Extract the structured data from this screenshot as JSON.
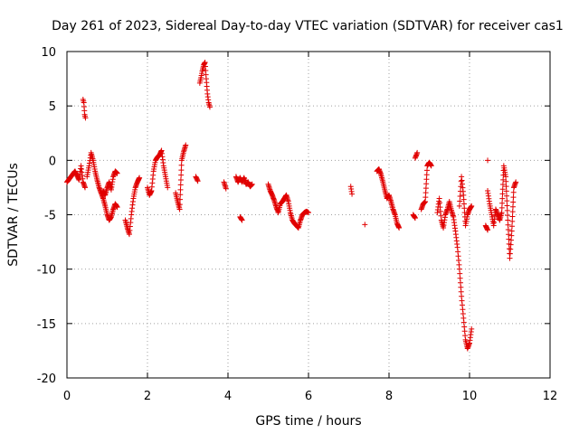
{
  "chart_data": {
    "type": "scatter",
    "title": "Day 261 of 2023, Sidereal Day-to-day VTEC variation (SDTVAR) for receiver cas1",
    "xlabel": "GPS time / hours",
    "ylabel": "SDTVAR / TECUs",
    "xlim": [
      0,
      12
    ],
    "ylim": [
      -20,
      10
    ],
    "xticks": [
      0,
      2,
      4,
      6,
      8,
      10,
      12
    ],
    "yticks": [
      -20,
      -15,
      -10,
      -5,
      0,
      5,
      10
    ],
    "xtick_labels": [
      "0",
      "2",
      "4",
      "6",
      "8",
      "10",
      "12"
    ],
    "ytick_labels": [
      "-20",
      "-15",
      "-10",
      "-5",
      "0",
      "5",
      "10"
    ],
    "grid": true,
    "marker": "plus",
    "color": "#e00000",
    "segments": [
      [
        0.0,
        -2.0,
        0.1,
        -1.5,
        0.2,
        -1.0,
        0.3,
        -1.8,
        0.35,
        -0.5,
        0.4,
        -2.0,
        0.45,
        -2.5
      ],
      [
        0.4,
        5.6,
        0.42,
        5.3,
        0.44,
        4.2,
        0.46,
        3.9
      ],
      [
        0.5,
        -1.5,
        0.55,
        -0.5,
        0.6,
        0.7,
        0.65,
        0.0,
        0.7,
        -1.0,
        0.75,
        -1.8,
        0.8,
        -2.5,
        0.85,
        -3.0,
        0.9,
        -3.5,
        0.95,
        -4.2,
        1.0,
        -5.0,
        1.05,
        -5.5,
        1.1,
        -5.2,
        1.15,
        -4.5,
        1.2,
        -4.0,
        1.25,
        -4.3
      ],
      [
        0.9,
        -2.8,
        0.95,
        -3.2,
        1.0,
        -2.5,
        1.05,
        -2.0,
        1.1,
        -2.7,
        1.15,
        -1.5,
        1.2,
        -1.0,
        1.25,
        -1.2
      ],
      [
        1.45,
        -5.5,
        1.5,
        -6.2,
        1.55,
        -6.8,
        1.6,
        -5.0,
        1.65,
        -3.5,
        1.7,
        -2.5,
        1.75,
        -2.0,
        1.8,
        -1.6
      ],
      [
        2.0,
        -2.5,
        2.05,
        -3.2,
        2.1,
        -2.8,
        2.15,
        -1.0,
        2.2,
        0.0,
        2.25,
        0.3,
        2.3,
        0.5,
        2.35,
        0.9,
        2.4,
        -0.5,
        2.45,
        -1.5,
        2.5,
        -2.5
      ],
      [
        2.7,
        -3.0,
        2.75,
        -3.8,
        2.8,
        -4.5,
        2.85,
        0.0,
        2.9,
        0.8,
        2.95,
        1.4
      ],
      [
        3.2,
        -1.5,
        3.25,
        -1.9
      ],
      [
        3.3,
        7.1,
        3.33,
        7.6,
        3.36,
        8.2,
        3.4,
        8.8,
        3.43,
        9.0,
        3.46,
        7.5,
        3.49,
        6.1,
        3.52,
        5.3,
        3.55,
        4.9
      ],
      [
        3.9,
        -2.0,
        3.95,
        -2.6
      ],
      [
        4.2,
        -1.5,
        4.25,
        -2.0,
        4.3,
        -1.6,
        4.35,
        -2.0,
        4.4,
        -1.6,
        4.45,
        -2.2,
        4.5,
        -2.0,
        4.55,
        -2.4,
        4.6,
        -2.2
      ],
      [
        4.3,
        -5.2,
        4.35,
        -5.5
      ],
      [
        5.0,
        -2.2,
        5.05,
        -2.8,
        5.1,
        -3.2,
        5.15,
        -3.7,
        5.2,
        -4.3,
        5.25,
        -4.8,
        5.3,
        -4.0,
        5.35,
        -3.8,
        5.4,
        -3.5,
        5.45,
        -3.2,
        5.5,
        -3.8,
        5.55,
        -4.8,
        5.6,
        -5.5,
        5.65,
        -5.8,
        5.7,
        -6.0,
        5.75,
        -6.2,
        5.8,
        -5.5,
        5.85,
        -5.0,
        5.9,
        -4.8,
        5.95,
        -4.7,
        6.0,
        -4.8
      ],
      [
        7.05,
        -2.4,
        7.08,
        -3.1
      ],
      [
        7.4,
        -5.9
      ],
      [
        7.7,
        -1.0,
        7.75,
        -0.8,
        7.8,
        -1.3,
        7.85,
        -2.0,
        7.9,
        -2.8,
        7.95,
        -3.5,
        8.0,
        -3.2,
        8.05,
        -3.8,
        8.1,
        -4.5,
        8.15,
        -5.0,
        8.2,
        -5.8,
        8.25,
        -6.2
      ],
      [
        8.6,
        -5.0,
        8.65,
        -5.3
      ],
      [
        8.65,
        0.2,
        8.7,
        0.7
      ],
      [
        8.8,
        -4.5,
        8.85,
        -4.0,
        8.9,
        -3.8,
        8.95,
        -0.5,
        9.0,
        -0.2,
        9.05,
        -0.5
      ],
      [
        9.2,
        -4.8,
        9.25,
        -3.5,
        9.3,
        -5.5,
        9.35,
        -6.2,
        9.4,
        -5.0,
        9.45,
        -4.5,
        9.5,
        -3.8,
        9.55,
        -4.6,
        9.6,
        -5.2,
        9.65,
        -6.5,
        9.7,
        -8.0,
        9.75,
        -10.0,
        9.8,
        -12.5,
        9.85,
        -14.5,
        9.9,
        -16.5,
        9.95,
        -17.3,
        10.0,
        -16.8,
        10.05,
        -15.5
      ],
      [
        9.75,
        -4.2,
        9.8,
        -1.5,
        9.85,
        -3.2,
        9.9,
        -6.0,
        9.95,
        -5.0,
        10.0,
        -4.5,
        10.05,
        -4.2
      ],
      [
        10.45,
        0.0
      ],
      [
        10.45,
        -2.8,
        10.5,
        -4.0,
        10.55,
        -5.0,
        10.6,
        -6.0,
        10.65,
        -4.5,
        10.7,
        -5.0,
        10.75,
        -5.5,
        10.8,
        -4.8,
        10.85,
        -0.5,
        10.9,
        -1.5,
        10.95,
        -5.5,
        11.0,
        -9.0,
        11.05,
        -6.5,
        11.1,
        -2.5,
        11.15,
        -2.0
      ],
      [
        10.4,
        -6.0,
        10.45,
        -6.4
      ]
    ]
  }
}
